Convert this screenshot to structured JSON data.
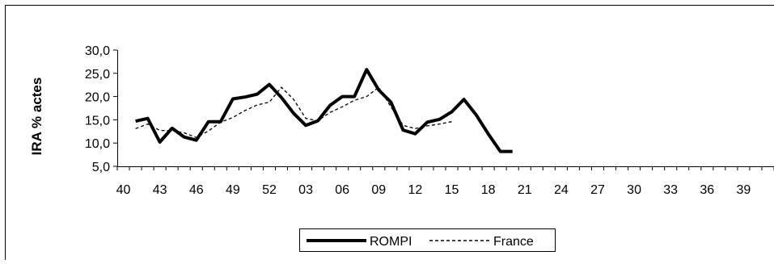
{
  "chart_data": {
    "type": "line",
    "title": "",
    "xlabel": "",
    "ylabel": "IRA % actes",
    "ylim": [
      5,
      30
    ],
    "yticks": [
      "5,0",
      "10,0",
      "15,0",
      "20,0",
      "25,0",
      "30,0"
    ],
    "xtick_labels": [
      "40",
      "43",
      "46",
      "49",
      "52",
      "03",
      "06",
      "09",
      "12",
      "15",
      "18",
      "21",
      "24",
      "27",
      "30",
      "33",
      "36",
      "39"
    ],
    "legend_position": "bottom",
    "grid": false,
    "series": [
      {
        "name": "ROMPI",
        "style": "solid-thick",
        "color": "#000000",
        "values": [
          14.7,
          15.3,
          10.2,
          13.2,
          11.3,
          10.6,
          14.6,
          14.6,
          19.5,
          19.9,
          20.5,
          22.6,
          19.8,
          16.4,
          13.8,
          14.8,
          18.1,
          20.0,
          20.0,
          25.8,
          21.4,
          18.8,
          12.8,
          12.0,
          14.5,
          15.1,
          16.7,
          19.4,
          16.1,
          12.0,
          8.2,
          8.2
        ]
      },
      {
        "name": "France",
        "style": "dashed-thin",
        "color": "#000000",
        "values": [
          13.1,
          14.1,
          12.7,
          12.7,
          12.2,
          11.2,
          12.6,
          14.5,
          15.5,
          17.0,
          18.2,
          18.8,
          22.0,
          19.4,
          15.3,
          14.8,
          16.6,
          17.8,
          19.2,
          20.0,
          22.0,
          17.8,
          13.8,
          13.1,
          13.7,
          14.1,
          14.6,
          null,
          null,
          null,
          null,
          null
        ]
      }
    ]
  }
}
